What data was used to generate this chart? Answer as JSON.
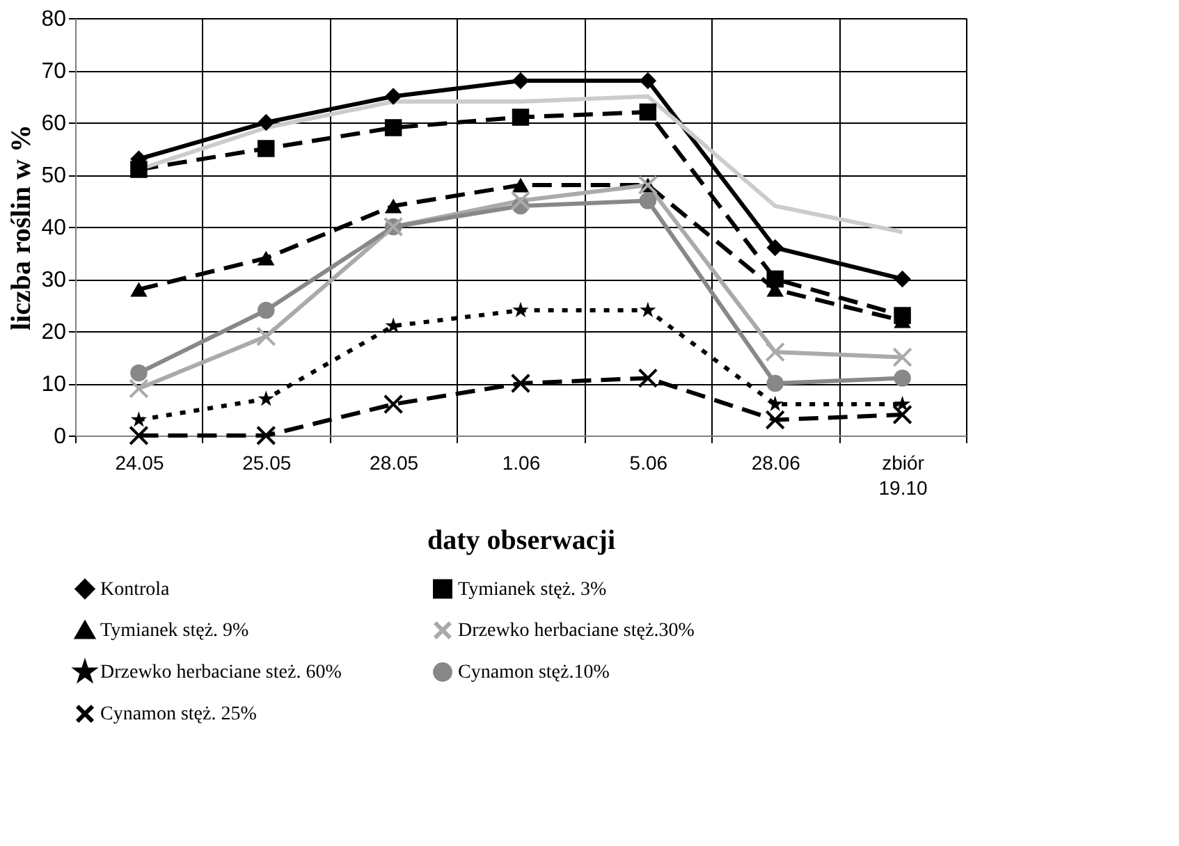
{
  "chart_data": {
    "type": "line",
    "xlabel": "daty obserwacji",
    "ylabel": "liczba roślin w %",
    "categories": [
      "24.05",
      "25.05",
      "28.05",
      "1.06",
      "5.06",
      "28.06",
      "zbiór 19.10"
    ],
    "ylim": [
      0,
      80
    ],
    "yticks": [
      0,
      10,
      20,
      30,
      40,
      50,
      60,
      70,
      80
    ],
    "grid": true,
    "legend": "bottom",
    "series": [
      {
        "name": "Kontrola",
        "color": "#000000",
        "marker": "diamond",
        "line_style": "solid",
        "values": [
          53,
          60,
          65,
          68,
          68,
          36,
          30
        ]
      },
      {
        "name": "Tymianek stęż. 3%",
        "color": "#000000",
        "marker": "square",
        "line_style": "dashed",
        "values": [
          51,
          55,
          59,
          61,
          62,
          30,
          23
        ]
      },
      {
        "name": "Tymianek stęż. 9%",
        "color": "#000000",
        "marker": "triangle",
        "line_style": "dashed",
        "values": [
          28,
          34,
          44,
          48,
          48,
          28,
          22
        ]
      },
      {
        "name": "Drzewko herbaciane stęż.30%",
        "color": "#aaaaaa",
        "marker": "cross",
        "line_style": "solid",
        "values": [
          9,
          19,
          40,
          45,
          48,
          16,
          15
        ]
      },
      {
        "name": "Drzewko herbaciane steż. 60%",
        "color": "#000000",
        "marker": "star",
        "line_style": "dotted",
        "values": [
          3,
          7,
          21,
          24,
          24,
          6,
          6
        ]
      },
      {
        "name": "Cynamon stęż.10%",
        "color": "#888888",
        "marker": "circle",
        "line_style": "solid",
        "values": [
          12,
          24,
          40,
          44,
          45,
          10,
          11
        ]
      },
      {
        "name": "Cynamon stęż. 25%",
        "color": "#000000",
        "marker": "cross",
        "line_style": "dashed",
        "values": [
          0,
          0,
          6,
          10,
          11,
          3,
          4
        ]
      },
      {
        "color": "#cccccc",
        "marker": "none",
        "line_style": "solid",
        "values": [
          51,
          59,
          64,
          64,
          65,
          44,
          39
        ]
      }
    ]
  }
}
